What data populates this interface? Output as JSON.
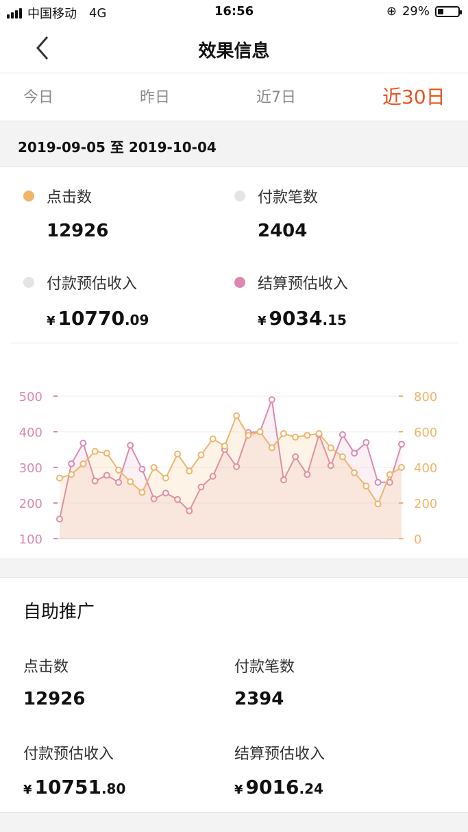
{
  "status_bar": {
    "carrier": "中国移动",
    "network": "4G",
    "time": "16:56",
    "battery": "29%",
    "battery_level": 0.29
  },
  "header": {
    "title": "效果信息"
  },
  "tabs": [
    {
      "label": "今日",
      "active": false
    },
    {
      "label": "昨日",
      "active": false
    },
    {
      "label": "近7日",
      "active": false
    },
    {
      "label": "近30日",
      "active": true
    }
  ],
  "date_range": "2019-09-05 至 2019-10-04",
  "summary": {
    "clicks": {
      "label": "点击数",
      "value": "12926",
      "color": "#f0b46a"
    },
    "payments": {
      "label": "付款笔数",
      "value": "2404",
      "color": "#e4e4e4"
    },
    "est_income": {
      "label": "付款预估收入",
      "currency": "¥",
      "int": "10770",
      "dec": ".09",
      "color": "#e4e4e4"
    },
    "settle_income": {
      "label": "结算预估收入",
      "currency": "¥",
      "int": "9034",
      "dec": ".15",
      "color": "#dd88b0"
    }
  },
  "chart_data": {
    "type": "line",
    "left_axis": {
      "ticks": [
        "500",
        "400",
        "300",
        "200",
        "100"
      ],
      "range": [
        100,
        500
      ],
      "color": "#dd88b0"
    },
    "right_axis": {
      "ticks": [
        "800",
        "600",
        "400",
        "200",
        "0"
      ],
      "range": [
        0,
        800
      ],
      "color": "#f0b46a"
    },
    "series": [
      {
        "axis": "left",
        "color": "#dd88b0",
        "values": [
          155,
          310,
          368,
          262,
          278,
          258,
          362,
          295,
          212,
          228,
          210,
          178,
          245,
          275,
          350,
          302,
          398,
          400,
          490,
          265,
          330,
          280,
          392,
          305,
          392,
          340,
          370,
          258,
          258,
          365
        ]
      },
      {
        "axis": "right",
        "color": "#f0b46a",
        "values": [
          340,
          360,
          420,
          490,
          480,
          385,
          320,
          260,
          400,
          340,
          475,
          380,
          470,
          560,
          520,
          690,
          580,
          600,
          510,
          590,
          570,
          580,
          590,
          510,
          460,
          370,
          295,
          195,
          360,
          400
        ]
      }
    ],
    "grid": true
  },
  "section2": {
    "title": "自助推广",
    "clicks": {
      "label": "点击数",
      "value": "12926"
    },
    "payments": {
      "label": "付款笔数",
      "value": "2394"
    },
    "est_income": {
      "label": "付款预估收入",
      "currency": "¥",
      "int": "10751",
      "dec": ".80"
    },
    "settle_income": {
      "label": "结算预估收入",
      "currency": "¥",
      "int": "9016",
      "dec": ".24"
    }
  }
}
